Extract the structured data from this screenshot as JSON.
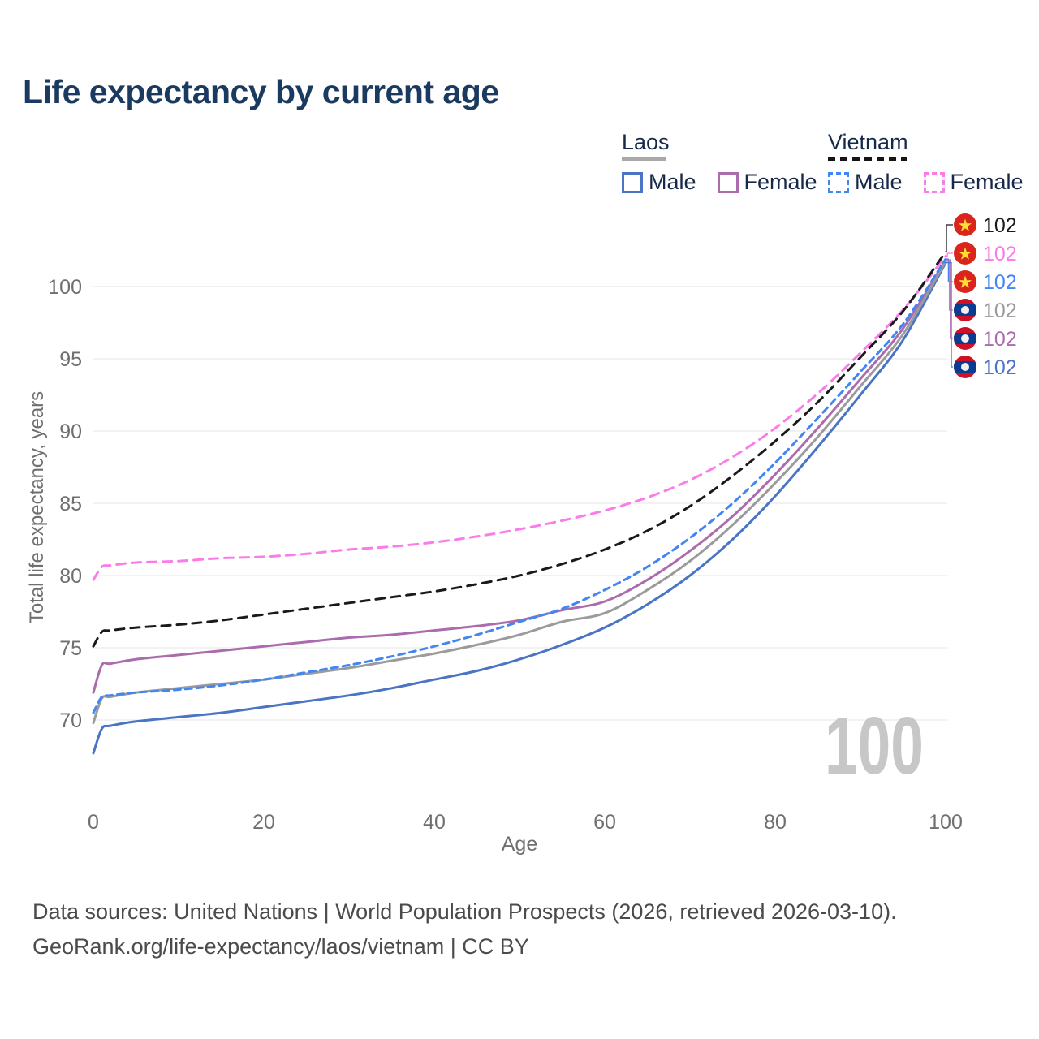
{
  "title": "Life expectancy by current age",
  "watermark": "100",
  "legend": {
    "groups": [
      {
        "label": "Laos",
        "underline_style": "solid",
        "underline_color": "#a9a9a9",
        "items": [
          {
            "label": "Male",
            "color": "#4a74c4",
            "style": "solid"
          },
          {
            "label": "Female",
            "color": "#ab6cad",
            "style": "solid"
          }
        ]
      },
      {
        "label": "Vietnam",
        "underline_style": "dashed",
        "underline_color": "#1a1a1a",
        "items": [
          {
            "label": "Male",
            "color": "#4285f4",
            "style": "dashed"
          },
          {
            "label": "Female",
            "color": "#fb7ce8",
            "style": "dashed"
          }
        ]
      }
    ]
  },
  "chart_data": {
    "type": "line",
    "title": "Life expectancy by current age",
    "xlabel": "Age",
    "ylabel": "Total life expectancy, years",
    "xlim": [
      0,
      100
    ],
    "ylim": [
      66,
      103.5
    ],
    "x_ticks": [
      0,
      20,
      40,
      60,
      80,
      100
    ],
    "y_ticks": [
      70,
      75,
      80,
      85,
      90,
      95,
      100
    ],
    "grid": "horizontal-only",
    "legend_position": "top-right",
    "x": [
      0,
      1,
      2,
      5,
      10,
      15,
      20,
      25,
      30,
      35,
      40,
      45,
      50,
      55,
      60,
      65,
      70,
      75,
      80,
      85,
      90,
      95,
      100
    ],
    "series": [
      {
        "id": "vietnam-all",
        "country": "Vietnam",
        "group": "all",
        "flag": "vietnam",
        "line": "dashed",
        "dash": "11 8",
        "color": "#1a1a1a",
        "end_label": "102",
        "values": [
          75.1,
          76.1,
          76.2,
          76.4,
          76.6,
          76.9,
          77.3,
          77.7,
          78.1,
          78.5,
          78.9,
          79.4,
          80.0,
          80.8,
          81.8,
          83.1,
          84.8,
          86.9,
          89.3,
          92.0,
          95.1,
          98.3,
          102.4
        ]
      },
      {
        "id": "vietnam-female",
        "country": "Vietnam",
        "group": "female",
        "flag": "vietnam",
        "line": "dashed",
        "dash": "11 8",
        "color": "#fb7ce8",
        "end_label": "102",
        "values": [
          79.7,
          80.6,
          80.7,
          80.9,
          81.0,
          81.2,
          81.3,
          81.5,
          81.8,
          82.0,
          82.3,
          82.7,
          83.2,
          83.8,
          84.5,
          85.4,
          86.6,
          88.2,
          90.2,
          92.6,
          95.4,
          98.4,
          102.1
        ]
      },
      {
        "id": "vietnam-male",
        "country": "Vietnam",
        "group": "male",
        "flag": "vietnam",
        "line": "dashed",
        "dash": "8 6",
        "color": "#4285f4",
        "end_label": "102",
        "values": [
          70.5,
          71.6,
          71.7,
          71.9,
          72.1,
          72.4,
          72.8,
          73.3,
          73.8,
          74.4,
          75.1,
          75.9,
          76.8,
          77.7,
          79.0,
          80.6,
          82.6,
          85.0,
          87.8,
          90.9,
          94.1,
          97.4,
          101.9
        ]
      },
      {
        "id": "laos-all",
        "country": "Laos",
        "group": "all",
        "flag": "laos",
        "line": "solid",
        "dash": null,
        "color": "#9b9b9b",
        "end_label": "102",
        "values": [
          69.8,
          71.5,
          71.6,
          71.9,
          72.2,
          72.5,
          72.8,
          73.2,
          73.6,
          74.1,
          74.6,
          75.2,
          75.9,
          76.8,
          77.4,
          79.0,
          81.0,
          83.5,
          86.4,
          89.6,
          93.1,
          96.7,
          101.75
        ]
      },
      {
        "id": "laos-female",
        "country": "Laos",
        "group": "female",
        "flag": "laos",
        "line": "solid",
        "dash": null,
        "color": "#ab6cad",
        "end_label": "102",
        "values": [
          71.9,
          73.8,
          73.9,
          74.2,
          74.5,
          74.8,
          75.1,
          75.4,
          75.7,
          75.9,
          76.2,
          76.5,
          76.9,
          77.6,
          78.2,
          79.7,
          81.7,
          84.1,
          87.0,
          90.2,
          93.6,
          97.1,
          101.85
        ]
      },
      {
        "id": "laos-male",
        "country": "Laos",
        "group": "male",
        "flag": "laos",
        "line": "solid",
        "dash": null,
        "color": "#4a74c4",
        "end_label": "102",
        "values": [
          67.7,
          69.4,
          69.6,
          69.9,
          70.2,
          70.5,
          70.9,
          71.3,
          71.7,
          72.2,
          72.8,
          73.4,
          74.2,
          75.2,
          76.4,
          78.0,
          80.0,
          82.5,
          85.5,
          88.9,
          92.5,
          96.3,
          101.65
        ]
      }
    ]
  },
  "footer": {
    "line1": "Data sources: United Nations | World Population Prospects (2026, retrieved 2026-03-10).",
    "line2": "GeoRank.org/life-expectancy/laos/vietnam | CC BY"
  }
}
